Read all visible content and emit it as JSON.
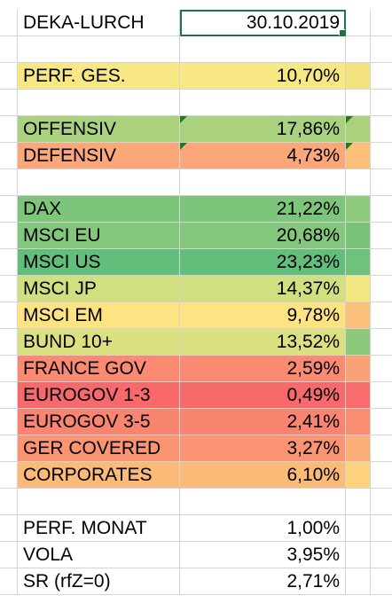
{
  "sheet": {
    "rows": [
      {
        "label": "DEKA-LURCH",
        "value": "30.10.2019",
        "fill": "#ffffff",
        "side": "#ffffff",
        "selected": true
      },
      {
        "label": "",
        "value": "",
        "fill": "#ffffff",
        "side": "#ffffff"
      },
      {
        "label": "PERF. GES.",
        "value": "10,70%",
        "fill": "#f8e883",
        "side": "#f3e37e"
      },
      {
        "label": "",
        "value": "",
        "fill": "#ffffff",
        "side": "#ffffff"
      },
      {
        "label": "OFFENSIV",
        "value": "17,86%",
        "fill": "#a9d17e",
        "side": "#a9d17e",
        "comment": true
      },
      {
        "label": "DEFENSIV",
        "value": "4,73%",
        "fill": "#fba77a",
        "side": "#fbc079",
        "comment": true
      },
      {
        "label": "",
        "value": "",
        "fill": "#ffffff",
        "side": "#ffffff"
      },
      {
        "label": "DAX",
        "value": "21,22%",
        "fill": "#7cc57b",
        "side": "#90cb7d"
      },
      {
        "label": "MSCI EU",
        "value": "20,68%",
        "fill": "#82c77c",
        "side": "#7ac37a"
      },
      {
        "label": "MSCI US",
        "value": "23,23%",
        "fill": "#63be7b",
        "side": "#70c17b"
      },
      {
        "label": "MSCI JP",
        "value": "14,37%",
        "fill": "#d2df81",
        "side": "#f2e780"
      },
      {
        "label": "MSCI EM",
        "value": "9,78%",
        "fill": "#fee382",
        "side": "#fbc07c"
      },
      {
        "label": "BUND 10+",
        "value": "13,52%",
        "fill": "#dbe081",
        "side": "#8dc97b"
      },
      {
        "label": "FRANCE GOV",
        "value": "2,59%",
        "fill": "#fa8a72",
        "side": "#f9a276"
      },
      {
        "label": "EUROGOV 1-3",
        "value": "0,49%",
        "fill": "#f8696b",
        "side": "#f86c6d"
      },
      {
        "label": "EUROGOV 3-5",
        "value": "2,41%",
        "fill": "#f98470",
        "side": "#f98d72"
      },
      {
        "label": "GER COVERED",
        "value": "3,27%",
        "fill": "#fa9473",
        "side": "#fbad78"
      },
      {
        "label": "CORPORATES",
        "value": "6,10%",
        "fill": "#fcba79",
        "side": "#fdd37f"
      },
      {
        "label": "",
        "value": "",
        "fill": "#ffffff",
        "side": "#ffffff"
      },
      {
        "label": "PERF. MONAT",
        "value": "1,00%",
        "fill": "#ffffff",
        "side": "#ffffff"
      },
      {
        "label": "VOLA",
        "value": "3,95%",
        "fill": "#ffffff",
        "side": "#ffffff"
      },
      {
        "label": "SR (rfZ=0)",
        "value": "2,71%",
        "fill": "#ffffff",
        "side": "#ffffff"
      }
    ]
  }
}
